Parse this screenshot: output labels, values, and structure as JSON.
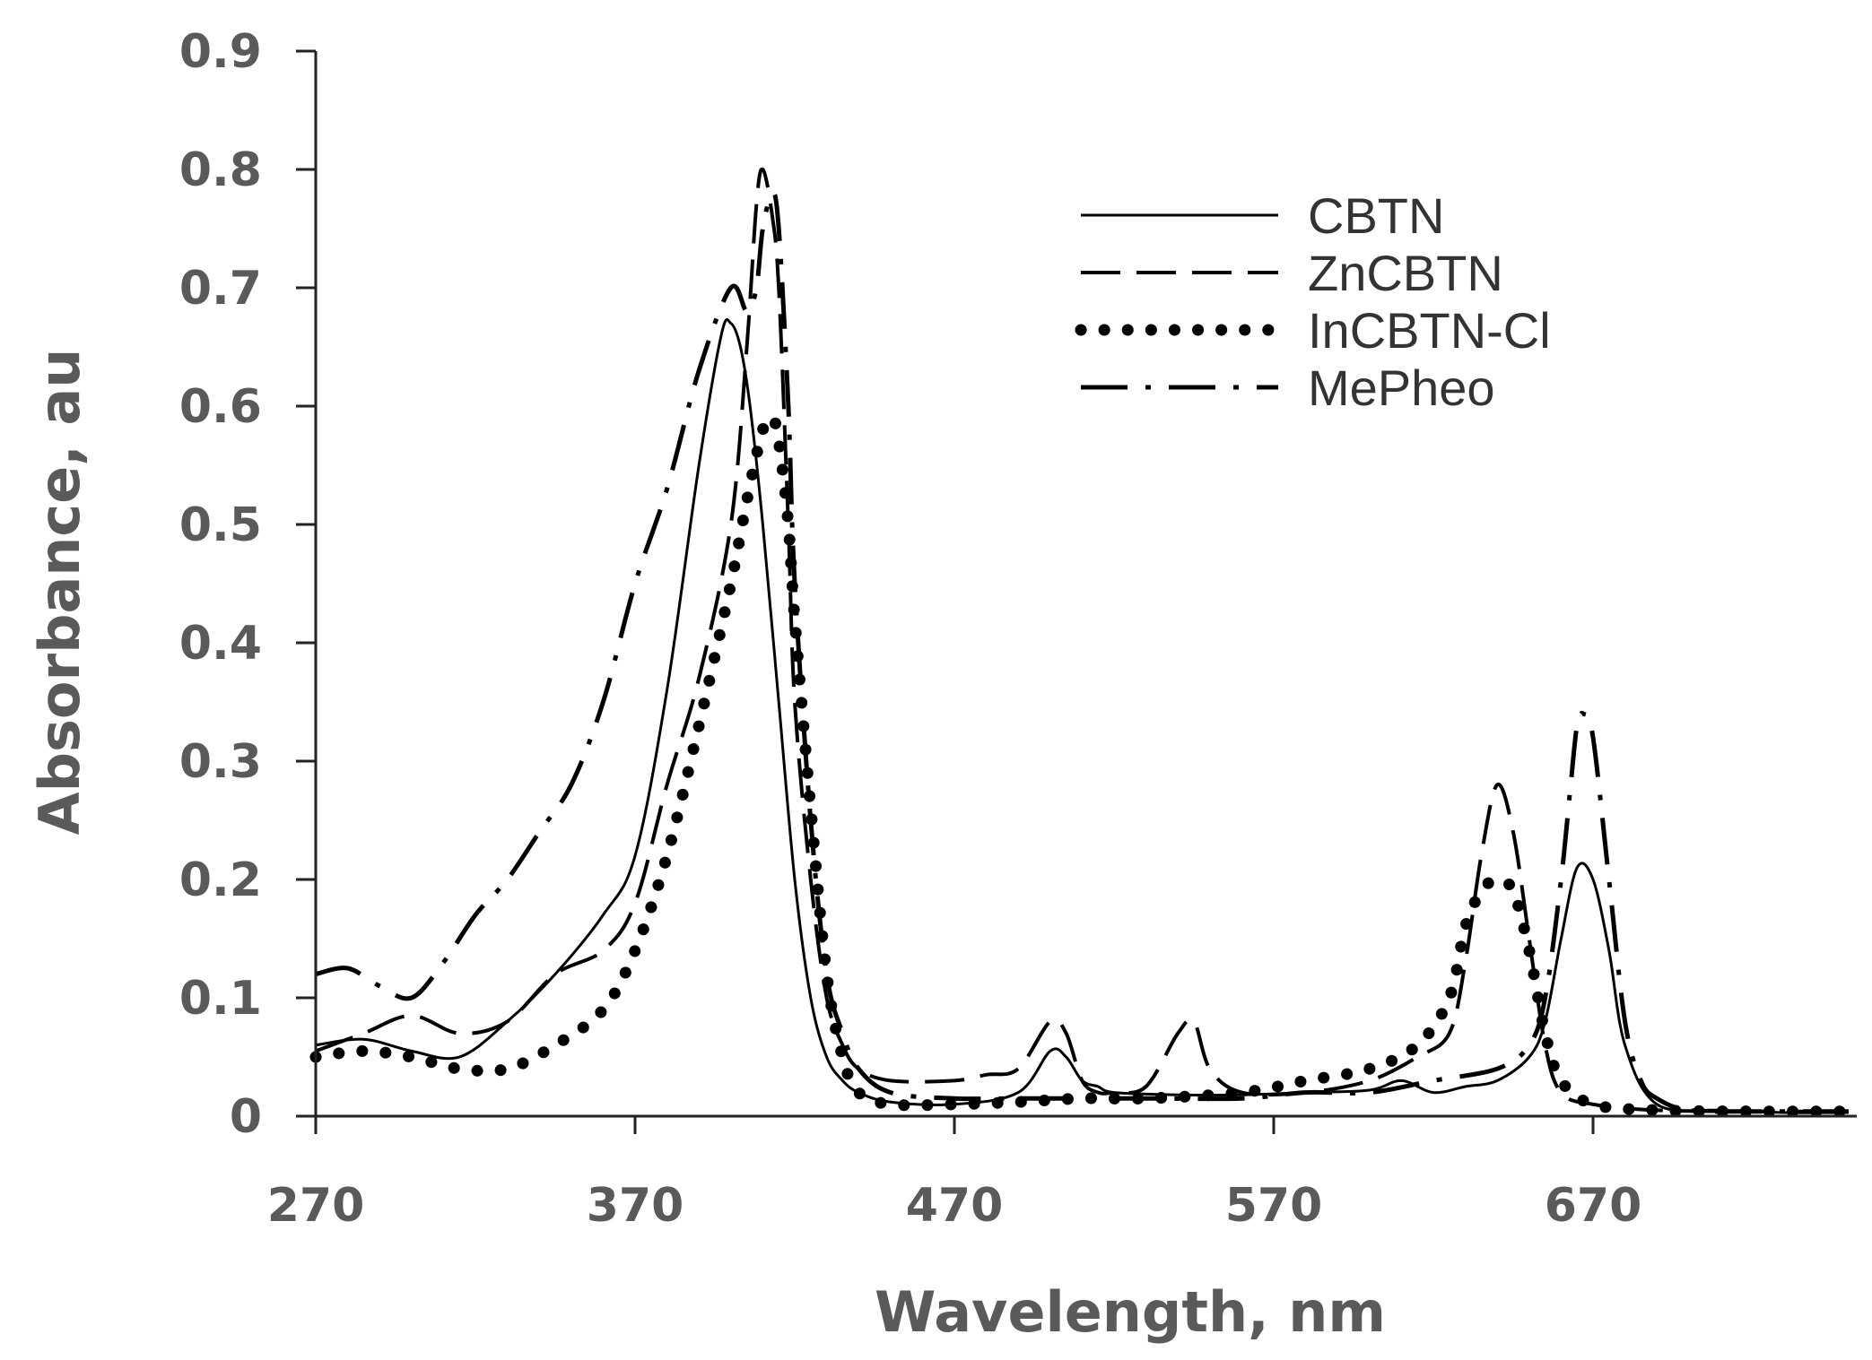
{
  "chart_data": {
    "type": "line",
    "title": "",
    "xlabel": "Wavelength, nm",
    "ylabel": "Absorbance, au",
    "xlim": [
      270,
      750
    ],
    "ylim": [
      0,
      0.9
    ],
    "x_ticks": [
      270,
      370,
      470,
      570,
      670
    ],
    "x_tick_labels": [
      "270",
      "370",
      "470",
      "570",
      "670"
    ],
    "y_ticks": [
      0,
      0.1,
      0.2,
      0.3,
      0.4,
      0.5,
      0.6,
      0.7,
      0.8,
      0.9
    ],
    "y_tick_labels": [
      "0",
      "0.1",
      "0.2",
      "0.3",
      "0.4",
      "0.5",
      "0.6",
      "0.7",
      "0.8",
      "0.9"
    ],
    "grid": false,
    "legend_position": "top-right",
    "series": [
      {
        "name": "CBTN",
        "style": "solid",
        "x": [
          270,
          285,
          300,
          315,
          330,
          345,
          360,
          370,
          380,
          390,
          397,
          400,
          403,
          406,
          410,
          415,
          420,
          425,
          430,
          435,
          440,
          450,
          470,
          490,
          500,
          505,
          510,
          515,
          520,
          540,
          560,
          580,
          600,
          610,
          620,
          630,
          640,
          650,
          655,
          660,
          665,
          670,
          675,
          680,
          690,
          710,
          730,
          750
        ],
        "y": [
          0.06,
          0.065,
          0.055,
          0.05,
          0.08,
          0.12,
          0.17,
          0.22,
          0.36,
          0.55,
          0.66,
          0.67,
          0.65,
          0.6,
          0.5,
          0.35,
          0.2,
          0.1,
          0.05,
          0.03,
          0.02,
          0.012,
          0.01,
          0.02,
          0.055,
          0.05,
          0.03,
          0.025,
          0.02,
          0.018,
          0.018,
          0.02,
          0.022,
          0.03,
          0.02,
          0.025,
          0.03,
          0.05,
          0.08,
          0.15,
          0.21,
          0.2,
          0.14,
          0.06,
          0.01,
          0.005,
          0.003,
          0.003
        ]
      },
      {
        "name": "ZnCBTN",
        "style": "dashed",
        "x": [
          270,
          285,
          300,
          315,
          330,
          345,
          360,
          370,
          380,
          390,
          400,
          405,
          408,
          410,
          413,
          415,
          418,
          420,
          425,
          430,
          435,
          440,
          450,
          470,
          480,
          490,
          500,
          505,
          510,
          515,
          520,
          530,
          540,
          545,
          550,
          560,
          580,
          600,
          615,
          625,
          630,
          635,
          640,
          645,
          650,
          655,
          660,
          670,
          690,
          720,
          750
        ],
        "y": [
          0.055,
          0.07,
          0.085,
          0.07,
          0.08,
          0.12,
          0.14,
          0.18,
          0.28,
          0.37,
          0.5,
          0.65,
          0.77,
          0.8,
          0.76,
          0.7,
          0.5,
          0.35,
          0.2,
          0.1,
          0.06,
          0.04,
          0.03,
          0.03,
          0.035,
          0.04,
          0.08,
          0.07,
          0.03,
          0.02,
          0.02,
          0.025,
          0.07,
          0.08,
          0.04,
          0.02,
          0.02,
          0.03,
          0.05,
          0.07,
          0.13,
          0.22,
          0.28,
          0.24,
          0.15,
          0.06,
          0.02,
          0.01,
          0.005,
          0.004,
          0.004
        ]
      },
      {
        "name": "InCBTN-Cl",
        "style": "dotted",
        "x": [
          270,
          285,
          300,
          315,
          330,
          345,
          360,
          370,
          380,
          390,
          400,
          405,
          410,
          413,
          415,
          418,
          420,
          425,
          430,
          435,
          440,
          450,
          470,
          490,
          510,
          530,
          560,
          580,
          600,
          615,
          625,
          630,
          635,
          640,
          645,
          650,
          655,
          660,
          670,
          690,
          720,
          750
        ],
        "y": [
          0.05,
          0.055,
          0.05,
          0.04,
          0.04,
          0.06,
          0.09,
          0.14,
          0.22,
          0.33,
          0.45,
          0.52,
          0.58,
          0.59,
          0.57,
          0.5,
          0.42,
          0.26,
          0.12,
          0.05,
          0.02,
          0.01,
          0.01,
          0.012,
          0.015,
          0.015,
          0.02,
          0.03,
          0.04,
          0.06,
          0.1,
          0.16,
          0.19,
          0.2,
          0.19,
          0.14,
          0.07,
          0.03,
          0.01,
          0.005,
          0.004,
          0.004
        ]
      },
      {
        "name": "MePheo",
        "style": "dashdot",
        "x": [
          270,
          280,
          290,
          300,
          310,
          320,
          330,
          340,
          350,
          360,
          370,
          380,
          390,
          400,
          405,
          408,
          410,
          413,
          415,
          418,
          420,
          425,
          430,
          435,
          440,
          450,
          470,
          490,
          510,
          530,
          560,
          580,
          600,
          620,
          640,
          650,
          655,
          660,
          663,
          665,
          667,
          670,
          675,
          680,
          685,
          690,
          700,
          720,
          750
        ],
        "y": [
          0.12,
          0.125,
          0.11,
          0.1,
          0.13,
          0.17,
          0.2,
          0.24,
          0.28,
          0.35,
          0.45,
          0.53,
          0.63,
          0.7,
          0.68,
          0.7,
          0.75,
          0.78,
          0.75,
          0.6,
          0.45,
          0.25,
          0.12,
          0.07,
          0.04,
          0.02,
          0.015,
          0.015,
          0.015,
          0.015,
          0.015,
          0.02,
          0.02,
          0.03,
          0.04,
          0.06,
          0.1,
          0.2,
          0.28,
          0.33,
          0.34,
          0.32,
          0.2,
          0.08,
          0.03,
          0.015,
          0.005,
          0.004,
          0.004
        ]
      }
    ]
  }
}
